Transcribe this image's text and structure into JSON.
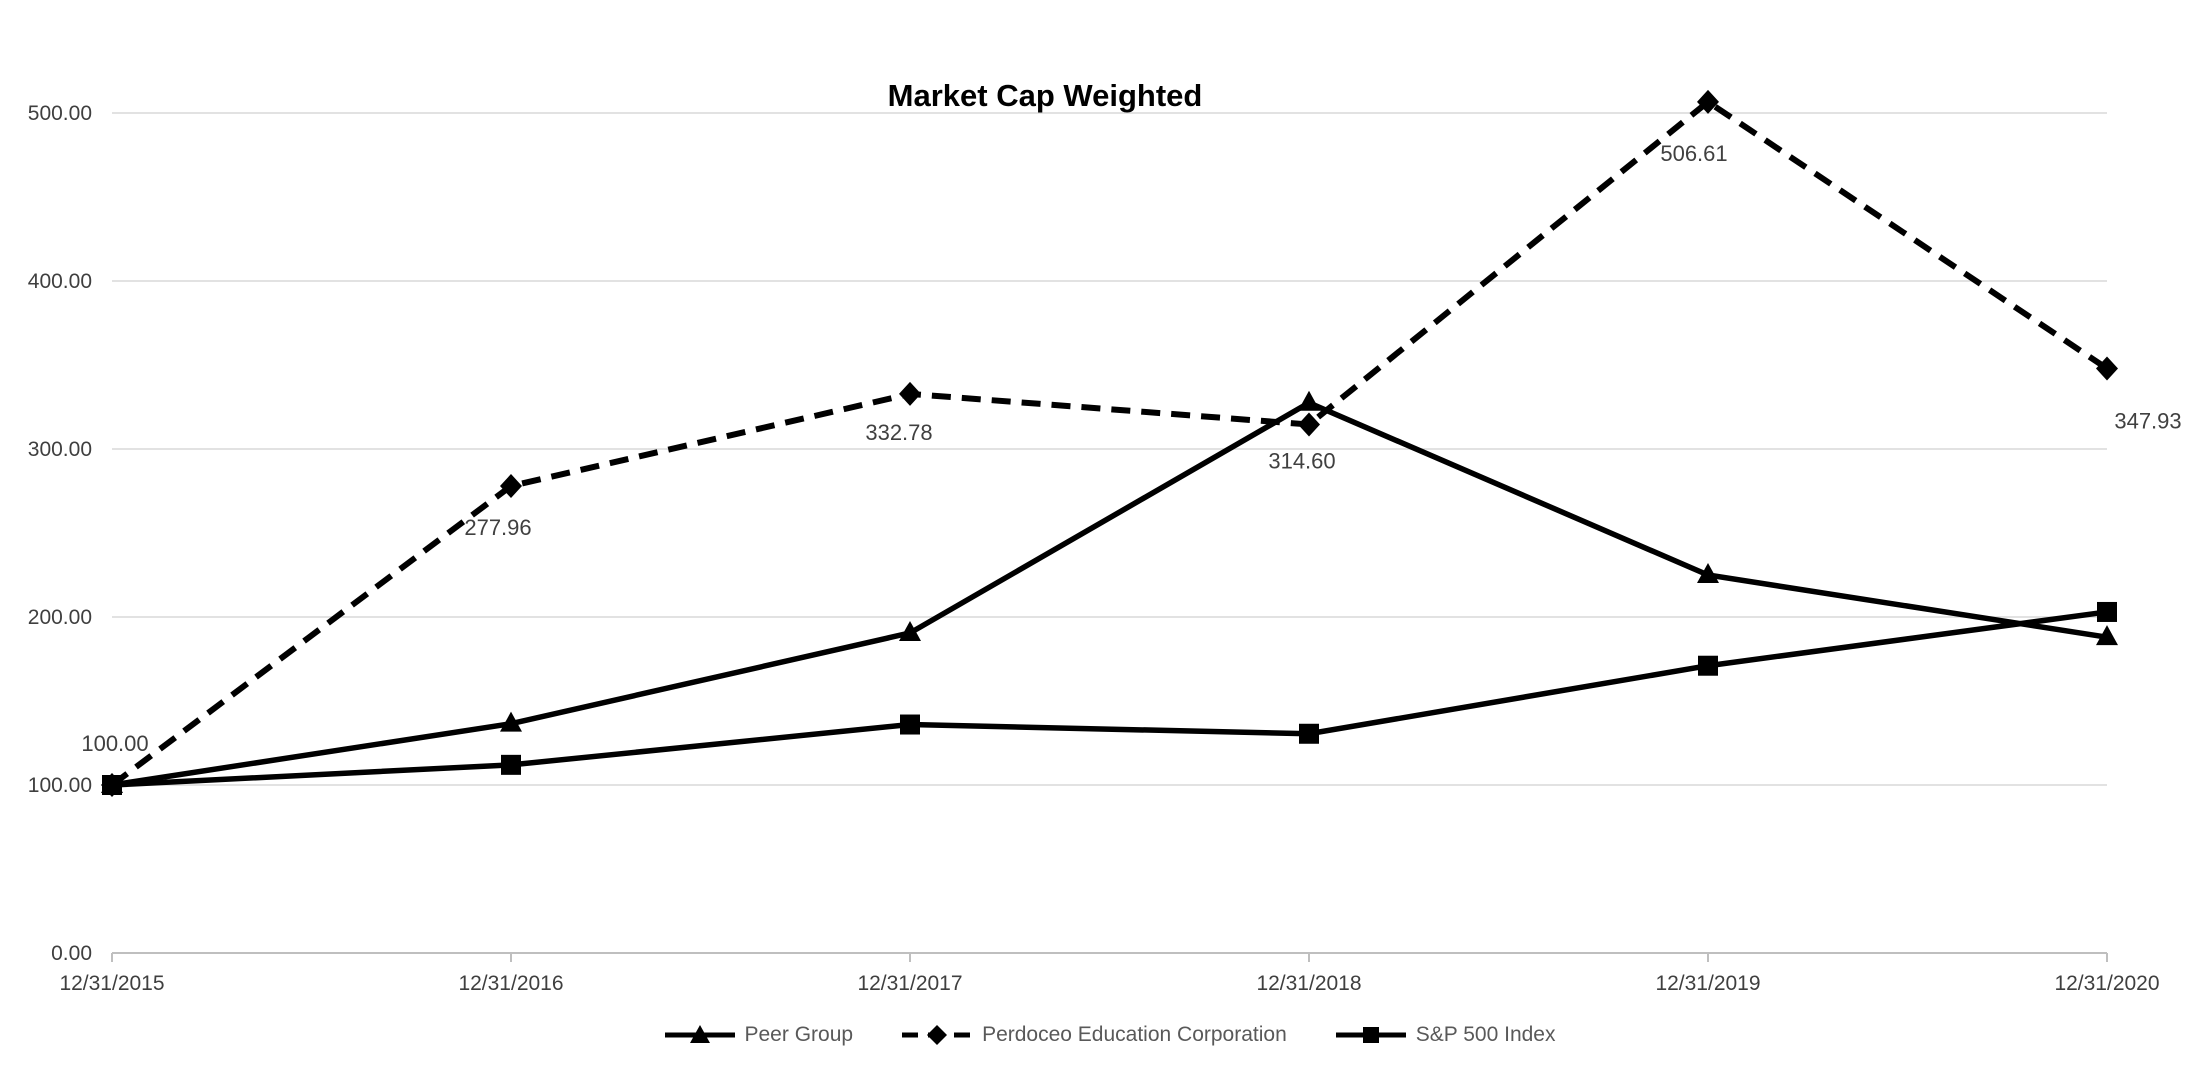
{
  "chart_data": {
    "type": "line",
    "title": "Market Cap Weighted",
    "categories": [
      "12/31/2015",
      "12/31/2016",
      "12/31/2017",
      "12/31/2018",
      "12/31/2019",
      "12/31/2020"
    ],
    "series": [
      {
        "name": "Peer Group",
        "marker": "triangle",
        "line_style": "solid",
        "values": [
          100.0,
          136.5,
          190.5,
          327.5,
          225.0,
          188.0
        ]
      },
      {
        "name": "Perdoceo Education Corporation",
        "marker": "diamond",
        "line_style": "dashed",
        "values": [
          100.0,
          277.96,
          332.78,
          314.6,
          506.61,
          347.93
        ],
        "data_labels": [
          "100.00",
          "277.96",
          "332.78",
          "314.60",
          "506.61",
          "347.93"
        ]
      },
      {
        "name": "S&P 500 Index",
        "marker": "square",
        "line_style": "solid",
        "values": [
          100.0,
          112.0,
          136.0,
          130.5,
          171.0,
          203.0
        ]
      }
    ],
    "ylim": [
      0,
      520
    ],
    "y_tick_interval": 100,
    "y_tick_labels": [
      "0.00",
      "100.00",
      "200.00",
      "300.00",
      "400.00",
      "500.00"
    ],
    "grid": true,
    "legend_position": "bottom",
    "colors": {
      "series": "#000000",
      "grid": "#d9d9d9",
      "axis": "#bfbfbf",
      "tick_label": "#3f3f3f",
      "data_label": "#404040",
      "legend_text": "#595959",
      "title": "#000000",
      "background": "#ffffff"
    }
  }
}
